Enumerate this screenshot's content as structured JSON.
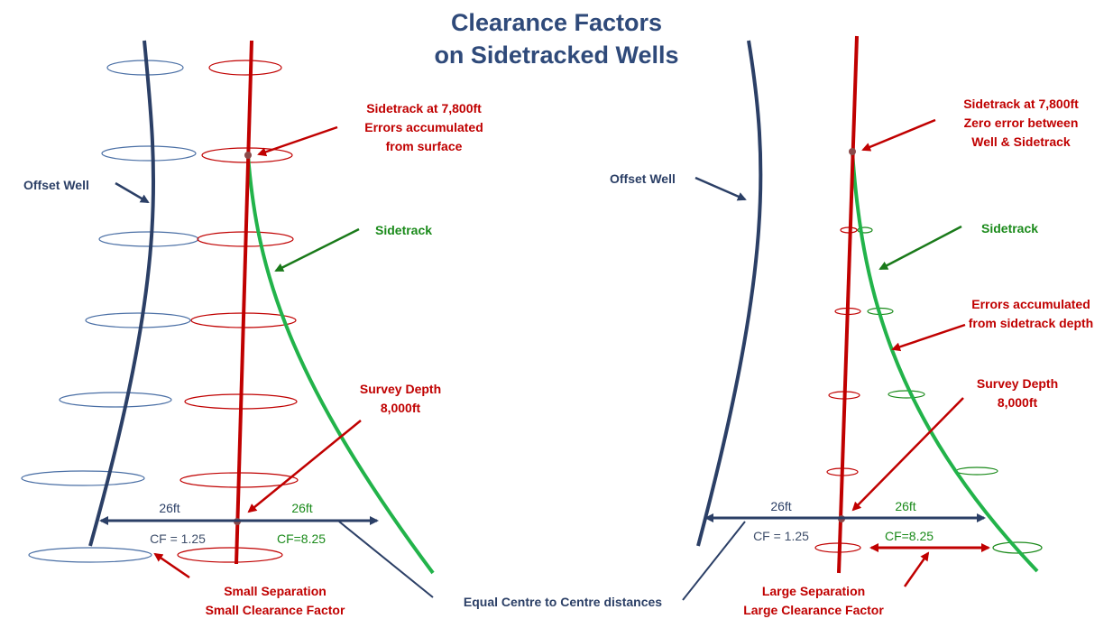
{
  "title": {
    "line1": "Clearance Factors",
    "line2": "on Sidetracked Wells"
  },
  "left_panel": {
    "offset_well_label": "Offset Well",
    "sidetrack_point_label": [
      "Sidetrack at 7,800ft",
      "Errors accumulated",
      "from surface"
    ],
    "sidetrack_label": "Sidetrack",
    "survey_depth_label": [
      "Survey Depth",
      "8,000ft"
    ],
    "distance_left": "26ft",
    "distance_right": "26ft",
    "cf_left": "CF = 1.25",
    "cf_right": "CF=8.25",
    "separation_label": [
      "Small Separation",
      "Small Clearance Factor"
    ]
  },
  "right_panel": {
    "offset_well_label": "Offset Well",
    "sidetrack_point_label": [
      "Sidetrack at 7,800ft",
      "Zero error between",
      "Well & Sidetrack"
    ],
    "sidetrack_label": "Sidetrack",
    "errors_label": [
      "Errors accumulated",
      "from sidetrack depth"
    ],
    "survey_depth_label": [
      "Survey Depth",
      "8,000ft"
    ],
    "distance_left": "26ft",
    "distance_right": "26ft",
    "cf_left": "CF = 1.25",
    "cf_right": "CF=8.25",
    "separation_label": [
      "Large Separation",
      "Large Clearance Factor"
    ]
  },
  "center_label": "Equal Centre to Centre distances",
  "colors": {
    "offset_well": "#2b3f66",
    "main_well": "#c00000",
    "sidetrack": "#22b34a",
    "sidetrack_text": "#1a8a1a",
    "title": "#2f4a7a"
  }
}
